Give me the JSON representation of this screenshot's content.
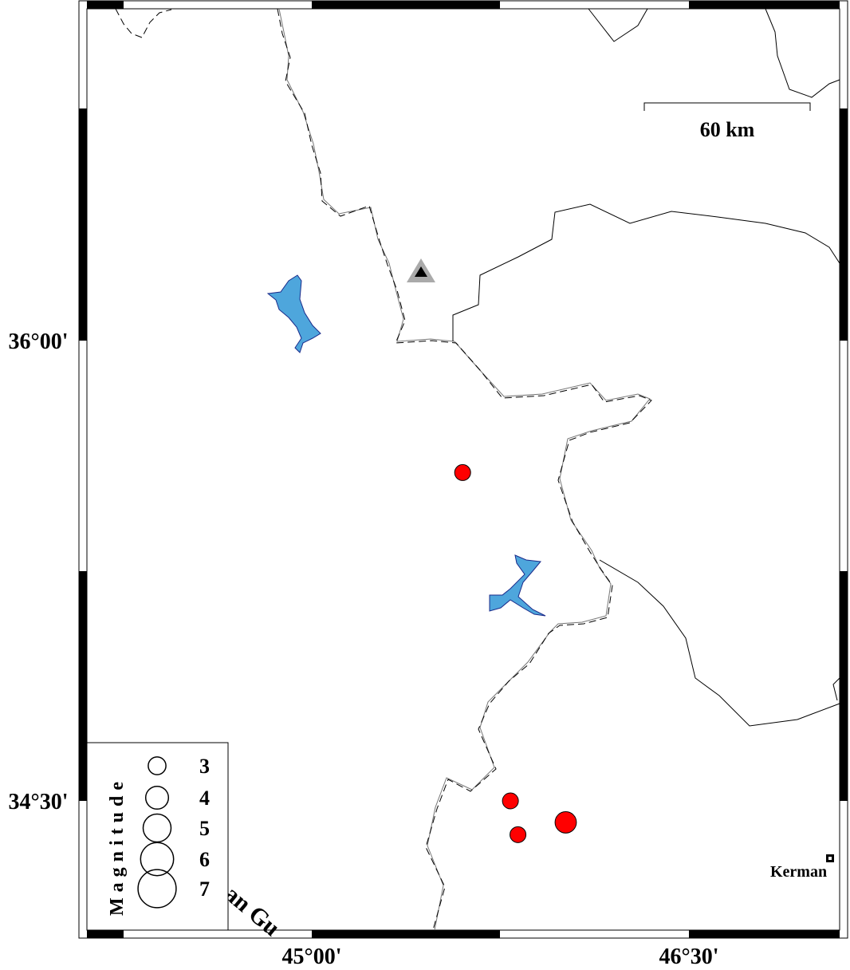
{
  "map": {
    "axis_labels": {
      "lat_36_00": "36°00'",
      "lat_34_30": "34°30'",
      "lon_45_00": "45°00'",
      "lon_46_30": "46°30'"
    },
    "extent": {
      "lat_ticks": [
        36.0,
        34.5
      ],
      "lon_ticks": [
        45.0,
        46.5
      ]
    },
    "scale_bar": {
      "label": "60 km"
    },
    "city": {
      "name": "Kerman"
    },
    "partial_label": "an Gu",
    "station": {
      "symbol": "triangle",
      "lat": 36.22,
      "lon": 45.43,
      "fill": "#000000",
      "halo": "#aaaaaa"
    },
    "events": [
      {
        "lat": 35.57,
        "lon": 45.6,
        "magnitude": 3
      },
      {
        "lat": 34.5,
        "lon": 45.79,
        "magnitude": 3
      },
      {
        "lat": 34.39,
        "lon": 45.82,
        "magnitude": 3
      },
      {
        "lat": 34.43,
        "lon": 46.01,
        "magnitude": 4
      }
    ],
    "colors": {
      "event": "#ff0000",
      "lake": "#4ea6dc",
      "lake_outline": "#1a2a8a"
    }
  },
  "legend": {
    "title": "Magnitude",
    "items": [
      {
        "magnitude": 3,
        "label": "3"
      },
      {
        "magnitude": 4,
        "label": "4"
      },
      {
        "magnitude": 5,
        "label": "5"
      },
      {
        "magnitude": 6,
        "label": "6"
      },
      {
        "magnitude": 7,
        "label": "7"
      }
    ]
  }
}
